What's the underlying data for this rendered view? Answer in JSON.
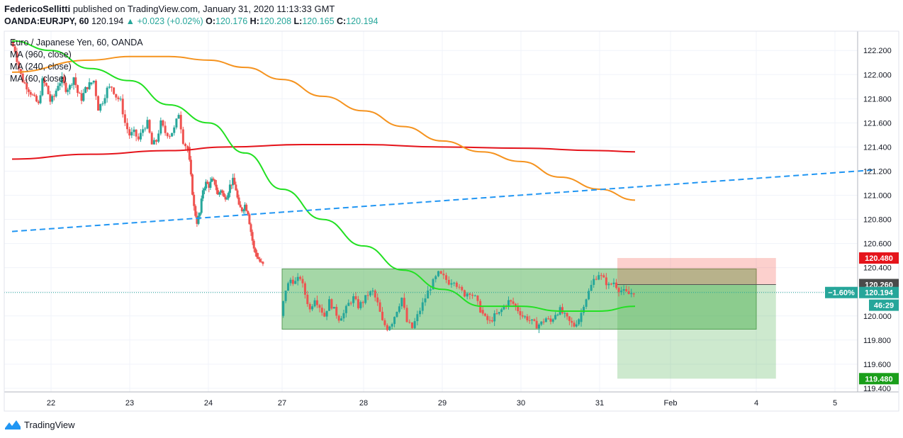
{
  "header": {
    "author": "FedericoSellitti",
    "published": "published on TradingView.com, January 31, 2020 11:13:33 GMT"
  },
  "quote": {
    "symbol": "OANDA:EURJPY, 60",
    "last": "120.194",
    "change_arrow": "▲",
    "change": "+0.023 (+0.02%)",
    "o_label": "O:",
    "o": "120.176",
    "h_label": "H:",
    "h": "120.208",
    "l_label": "L:",
    "l": "120.165",
    "c_label": "C:",
    "c": "120.194"
  },
  "legend": {
    "title": "Euro / Japanese Yen, 60, OANDA",
    "ma1": "MA (960, close)",
    "ma2": "MA (240, close)",
    "ma3": "MA (60, close)"
  },
  "footer": {
    "brand": "TradingView"
  },
  "colors": {
    "up": "#26a69a",
    "down": "#ef5350",
    "ma960": "#e5141b",
    "ma240": "#f5931f",
    "ma60": "#22e022",
    "trend": "#2196f3",
    "axis": "#b2b5be",
    "grid": "#f0f3fa"
  },
  "chart_data": {
    "type": "candlestick",
    "x_ticks": [
      "22",
      "23",
      "24",
      "27",
      "28",
      "29",
      "30",
      "31",
      "Feb",
      "4",
      "5"
    ],
    "y_ticks": [
      122.2,
      122.0,
      121.8,
      121.6,
      121.4,
      121.2,
      121.0,
      120.8,
      120.6,
      120.4,
      120.2,
      120.0,
      119.8,
      119.6,
      119.4
    ],
    "ylim": [
      119.37,
      122.36
    ],
    "price_labels": {
      "target_top": "120.480",
      "entry": "120.260",
      "change_pct": "−1.60%",
      "last": "120.194",
      "countdown": "46:29",
      "target_bottom": "119.480"
    },
    "series": [
      {
        "name": "MA (960, close)",
        "type": "line",
        "x": [
          "Jan 21 12:00",
          "Jan 22 12:00",
          "Jan 23 12:00",
          "Jan 24 06:00",
          "Jan 27 06:00",
          "Jan 28 00:00",
          "Jan 29 00:00",
          "Jan 30 00:00",
          "Jan 31 00:00",
          "Jan 31 12:00"
        ],
        "values": [
          121.3,
          121.34,
          121.37,
          121.4,
          121.42,
          121.42,
          121.4,
          121.39,
          121.37,
          121.36
        ]
      },
      {
        "name": "MA (240, close)",
        "type": "line",
        "x": [
          "Jan 21 12:00",
          "Jan 22 12:00",
          "Jan 23 00:00",
          "Jan 23 12:00",
          "Jan 24 00:00",
          "Jan 24 12:00",
          "Jan 27 00:00",
          "Jan 27 12:00",
          "Jan 28 00:00",
          "Jan 28 12:00",
          "Jan 29 00:00",
          "Jan 29 12:00",
          "Jan 30 00:00",
          "Jan 30 12:00",
          "Jan 31 00:00",
          "Jan 31 12:00"
        ],
        "values": [
          122.02,
          122.12,
          122.15,
          122.15,
          122.12,
          122.06,
          121.96,
          121.82,
          121.7,
          121.57,
          121.45,
          121.36,
          121.28,
          121.15,
          121.05,
          120.96
        ]
      },
      {
        "name": "MA (60, close)",
        "type": "line",
        "x": [
          "Jan 21 12:00",
          "Jan 22 00:00",
          "Jan 22 12:00",
          "Jan 23 00:00",
          "Jan 23 12:00",
          "Jan 24 00:00",
          "Jan 24 12:00",
          "Jan 27 00:00",
          "Jan 27 12:00",
          "Jan 28 00:00",
          "Jan 28 12:00",
          "Jan 29 00:00",
          "Jan 29 12:00",
          "Jan 30 00:00",
          "Jan 30 12:00",
          "Jan 31 00:00",
          "Jan 31 12:00"
        ],
        "values": [
          122.28,
          122.2,
          122.05,
          121.95,
          121.75,
          121.6,
          121.35,
          121.05,
          120.8,
          120.58,
          120.38,
          120.22,
          120.08,
          120.08,
          120.04,
          120.04,
          120.08
        ]
      },
      {
        "name": "trend line",
        "type": "dashed",
        "x": [
          "Jan 21 12:00",
          "Feb 5 12:00"
        ],
        "values": [
          120.7,
          121.21
        ]
      }
    ],
    "zones": [
      {
        "name": "range box",
        "x0": "Jan 27 00:00",
        "x1": "Feb 4 00:00",
        "top": 120.39,
        "bottom": 119.89
      },
      {
        "name": "short stop",
        "x0": "Jan 31 06:00",
        "x1": "Feb 4 06:00",
        "top": 120.48,
        "bottom": 120.26
      },
      {
        "name": "short target",
        "x0": "Jan 31 06:00",
        "x1": "Feb 4 06:00",
        "top": 120.26,
        "bottom": 119.48
      }
    ],
    "candles_segments": [
      {
        "x0": "Jan 21 12:00",
        "x1": "Jan 22 12:00",
        "points": [
          122.27,
          122.2,
          122.05,
          121.95,
          121.9,
          121.85,
          121.8,
          121.75,
          121.95,
          121.9,
          121.78,
          121.82,
          121.92,
          121.96,
          121.88,
          121.9,
          121.98,
          121.85,
          121.8,
          121.88,
          121.92
        ]
      },
      {
        "x0": "Jan 22 12:00",
        "x1": "Jan 23 18:00",
        "points": [
          121.92,
          121.95,
          121.72,
          121.78,
          121.88,
          121.9,
          121.82,
          121.78,
          121.6,
          121.5,
          121.52,
          121.46,
          121.55,
          121.6,
          121.42,
          121.45,
          121.6,
          121.52,
          121.5,
          121.55,
          121.68,
          121.45,
          121.38
        ]
      },
      {
        "x0": "Jan 23 18:00",
        "x1": "Jan 24 18:00",
        "points": [
          121.4,
          121.15,
          120.9,
          120.78,
          120.85,
          121.05,
          121.1,
          121.08,
          121.12,
          121.1,
          121.0,
          121.05,
          120.98,
          121.0,
          121.08,
          121.12,
          121.05,
          120.9,
          120.88,
          120.92,
          120.86,
          120.7,
          120.55,
          120.5,
          120.45,
          120.42
        ]
      },
      {
        "x0": "Jan 27 00:00",
        "x1": "Jan 28 12:00",
        "points": [
          120.0,
          120.22,
          120.3,
          120.28,
          120.32,
          120.18,
          120.05,
          120.15,
          120.08,
          120.0,
          120.12,
          120.05,
          119.98,
          120.02,
          120.1,
          120.15,
          120.08,
          120.12,
          120.18,
          120.2,
          120.1,
          119.95,
          119.9,
          119.95,
          120.05,
          120.15
        ]
      },
      {
        "x0": "Jan 28 12:00",
        "x1": "Jan 29 12:00",
        "points": [
          120.15,
          119.95,
          119.9,
          120.0,
          120.1,
          120.2,
          120.28,
          120.35,
          120.32,
          120.28,
          120.3,
          120.22,
          120.18,
          120.2,
          120.15,
          120.05
        ]
      },
      {
        "x0": "Jan 29 12:00",
        "x1": "Jan 30 18:00",
        "points": [
          120.05,
          119.98,
          119.95,
          120.0,
          120.02,
          120.08,
          120.12,
          120.1,
          120.05,
          120.0,
          119.98,
          119.95,
          119.92,
          119.94,
          119.98,
          119.95,
          120.02,
          120.05,
          120.0,
          119.95,
          119.92,
          119.98
        ]
      },
      {
        "x0": "Jan 30 18:00",
        "x1": "Jan 31 12:00",
        "points": [
          119.95,
          120.1,
          120.2,
          120.3,
          120.35,
          120.3,
          120.25,
          120.28,
          120.22,
          120.2,
          120.18,
          120.2
        ]
      }
    ]
  }
}
